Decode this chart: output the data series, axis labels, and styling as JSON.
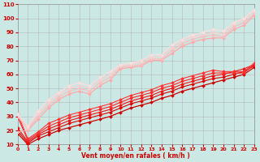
{
  "xlabel": "Vent moyen/en rafales ( km/h )",
  "background_color": "#cce8e4",
  "grid_color": "#aaaaaa",
  "xlim": [
    0,
    23
  ],
  "ylim": [
    10,
    110
  ],
  "yticks": [
    10,
    20,
    30,
    40,
    50,
    60,
    70,
    80,
    90,
    100,
    110
  ],
  "xticks": [
    0,
    1,
    2,
    3,
    4,
    5,
    6,
    7,
    8,
    9,
    10,
    11,
    12,
    13,
    14,
    15,
    16,
    17,
    18,
    19,
    20,
    21,
    22,
    23
  ],
  "series": [
    {
      "x": [
        0,
        1,
        2,
        3,
        4,
        5,
        6,
        7,
        8,
        9,
        10,
        11,
        12,
        13,
        14,
        15,
        16,
        17,
        18,
        19,
        20,
        21,
        22,
        23
      ],
      "y": [
        18,
        10,
        14,
        17,
        20,
        22,
        24,
        26,
        28,
        30,
        33,
        36,
        38,
        40,
        43,
        45,
        48,
        50,
        52,
        54,
        56,
        58,
        60,
        65
      ],
      "color": "#cc0000",
      "linewidth": 0.9,
      "marker": "D",
      "markersize": 2.0
    },
    {
      "x": [
        0,
        1,
        2,
        3,
        4,
        5,
        6,
        7,
        8,
        9,
        10,
        11,
        12,
        13,
        14,
        15,
        16,
        17,
        18,
        19,
        20,
        21,
        22,
        23
      ],
      "y": [
        20,
        11,
        16,
        19,
        22,
        25,
        27,
        29,
        31,
        33,
        36,
        39,
        41,
        43,
        46,
        48,
        51,
        53,
        55,
        57,
        58,
        60,
        62,
        66
      ],
      "color": "#dd0000",
      "linewidth": 0.8,
      "marker": "D",
      "markersize": 2.0
    },
    {
      "x": [
        0,
        1,
        2,
        3,
        4,
        5,
        6,
        7,
        8,
        9,
        10,
        11,
        12,
        13,
        14,
        15,
        16,
        17,
        18,
        19,
        20,
        21,
        22,
        23
      ],
      "y": [
        22,
        12,
        17,
        21,
        24,
        27,
        29,
        31,
        33,
        35,
        38,
        41,
        43,
        45,
        48,
        50,
        53,
        55,
        57,
        59,
        60,
        62,
        64,
        67
      ],
      "color": "#ee1111",
      "linewidth": 0.8,
      "marker": "D",
      "markersize": 2.0
    },
    {
      "x": [
        0,
        1,
        2,
        3,
        4,
        5,
        6,
        7,
        8,
        9,
        10,
        11,
        12,
        13,
        14,
        15,
        16,
        17,
        18,
        19,
        20,
        21,
        22,
        23
      ],
      "y": [
        30,
        13,
        18,
        23,
        26,
        29,
        31,
        33,
        35,
        37,
        40,
        43,
        45,
        47,
        50,
        52,
        55,
        57,
        59,
        61,
        61,
        61,
        61,
        67
      ],
      "color": "#ff2222",
      "linewidth": 0.8,
      "marker": "D",
      "markersize": 2.0
    },
    {
      "x": [
        0,
        1,
        2,
        3,
        4,
        5,
        6,
        7,
        8,
        9,
        10,
        11,
        12,
        13,
        14,
        15,
        16,
        17,
        18,
        19,
        20,
        21,
        22,
        23
      ],
      "y": [
        32,
        14,
        19,
        25,
        28,
        31,
        33,
        35,
        37,
        39,
        42,
        45,
        47,
        49,
        52,
        54,
        57,
        59,
        61,
        63,
        62,
        62,
        62,
        68
      ],
      "color": "#ff3333",
      "linewidth": 0.8,
      "marker": "D",
      "markersize": 2.0
    },
    {
      "x": [
        0,
        1,
        2,
        3,
        4,
        5,
        6,
        7,
        8,
        9,
        10,
        11,
        12,
        13,
        14,
        15,
        16,
        17,
        18,
        19,
        20,
        21,
        22,
        23
      ],
      "y": [
        19,
        20,
        28,
        36,
        42,
        46,
        48,
        46,
        52,
        56,
        64,
        65,
        66,
        70,
        70,
        75,
        80,
        83,
        85,
        86,
        86,
        92,
        95,
        102
      ],
      "color": "#ffaaaa",
      "linewidth": 0.9,
      "marker": "D",
      "markersize": 2.0
    },
    {
      "x": [
        0,
        1,
        2,
        3,
        4,
        5,
        6,
        7,
        8,
        9,
        10,
        11,
        12,
        13,
        14,
        15,
        16,
        17,
        18,
        19,
        20,
        21,
        22,
        23
      ],
      "y": [
        30,
        21,
        30,
        38,
        44,
        48,
        50,
        48,
        54,
        58,
        65,
        66,
        67,
        71,
        71,
        77,
        82,
        85,
        87,
        88,
        87,
        94,
        97,
        103
      ],
      "color": "#ffbbbb",
      "linewidth": 0.8,
      "marker": "D",
      "markersize": 2.0
    },
    {
      "x": [
        0,
        1,
        2,
        3,
        4,
        5,
        6,
        7,
        8,
        9,
        10,
        11,
        12,
        13,
        14,
        15,
        16,
        17,
        18,
        19,
        20,
        21,
        22,
        23
      ],
      "y": [
        31,
        22,
        32,
        40,
        46,
        50,
        52,
        50,
        56,
        60,
        66,
        67,
        69,
        72,
        73,
        79,
        84,
        87,
        88,
        90,
        89,
        96,
        99,
        105
      ],
      "color": "#ffcccc",
      "linewidth": 0.8,
      "marker": "D",
      "markersize": 2.0
    },
    {
      "x": [
        0,
        1,
        2,
        3,
        4,
        5,
        6,
        7,
        8,
        9,
        10,
        11,
        12,
        13,
        14,
        15,
        16,
        17,
        18,
        19,
        20,
        21,
        22,
        23
      ],
      "y": [
        32,
        23,
        34,
        42,
        47,
        52,
        54,
        52,
        58,
        62,
        67,
        68,
        70,
        74,
        74,
        81,
        85,
        88,
        90,
        92,
        91,
        97,
        100,
        106
      ],
      "color": "#ffdddd",
      "linewidth": 0.8,
      "marker": "D",
      "markersize": 2.0
    }
  ]
}
